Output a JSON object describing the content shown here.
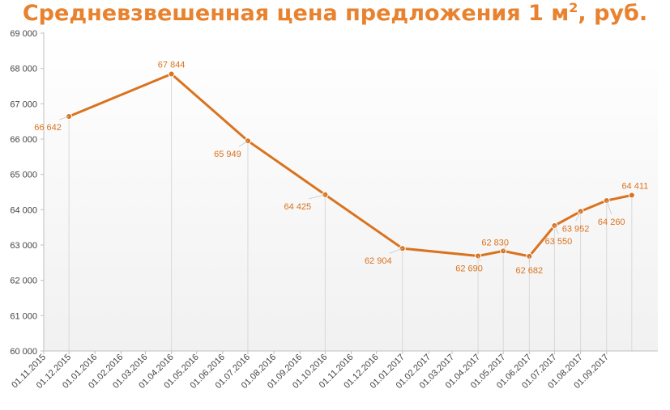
{
  "chart_data": {
    "type": "line",
    "title": "Средневзвешенная цена предложения 1 м",
    "title_superscript": "2",
    "title_suffix": ", руб.",
    "xlabel": "",
    "ylabel": "",
    "ylim": [
      60000,
      69000
    ],
    "y_ticks": [
      "60 000",
      "61 000",
      "62 000",
      "63 000",
      "64 000",
      "65 000",
      "66 000",
      "67 000",
      "68 000",
      "69 000"
    ],
    "y_tick_values": [
      60000,
      61000,
      62000,
      63000,
      64000,
      65000,
      66000,
      67000,
      68000,
      69000
    ],
    "x_ticks": [
      "01.11.2015",
      "01.12.2015",
      "01.01.2016",
      "01.02.2016",
      "01.03.2016",
      "01.04.2016",
      "01.05.2016",
      "01.06.2016",
      "01.07.2016",
      "01.08.2016",
      "01.09.2016",
      "01.10.2016",
      "01.11.2016",
      "01.12.2016",
      "01.01.2017",
      "01.02.2017",
      "01.03.2017",
      "01.04.2017",
      "01.05.2017",
      "01.06.2017",
      "01.07.2017",
      "01.08.2017",
      "01.09.2017"
    ],
    "grid": false,
    "legend": "none",
    "series": [
      {
        "color": "#D9731F",
        "points": [
          {
            "x": "01.12.2015",
            "y": 66642,
            "label": "66 642"
          },
          {
            "x": "01.04.2016",
            "y": 67844,
            "label": "67 844"
          },
          {
            "x": "01.07.2016",
            "y": 65949,
            "label": "65 949"
          },
          {
            "x": "01.10.2016",
            "y": 64425,
            "label": "64 425"
          },
          {
            "x": "01.01.2017",
            "y": 62904,
            "label": "62 904"
          },
          {
            "x": "01.04.2017",
            "y": 62690,
            "label": "62 690"
          },
          {
            "x": "01.05.2017",
            "y": 62830,
            "label": "62 830"
          },
          {
            "x": "01.06.2017",
            "y": 62682,
            "label": "62 682"
          },
          {
            "x": "01.07.2017",
            "y": 63550,
            "label": "63 550"
          },
          {
            "x": "01.08.2017",
            "y": 63952,
            "label": "63 952"
          },
          {
            "x": "01.09.2017",
            "y": 64260,
            "label": "64 260"
          },
          {
            "x": "01.10.2017",
            "y": 64411,
            "label": "64 411"
          }
        ]
      }
    ],
    "colors": {
      "title": "#E8822E",
      "line": "#D9731F",
      "label": "#D9731F",
      "axis_text": "#444444",
      "gridline_drop": "#D9D9D9"
    }
  }
}
